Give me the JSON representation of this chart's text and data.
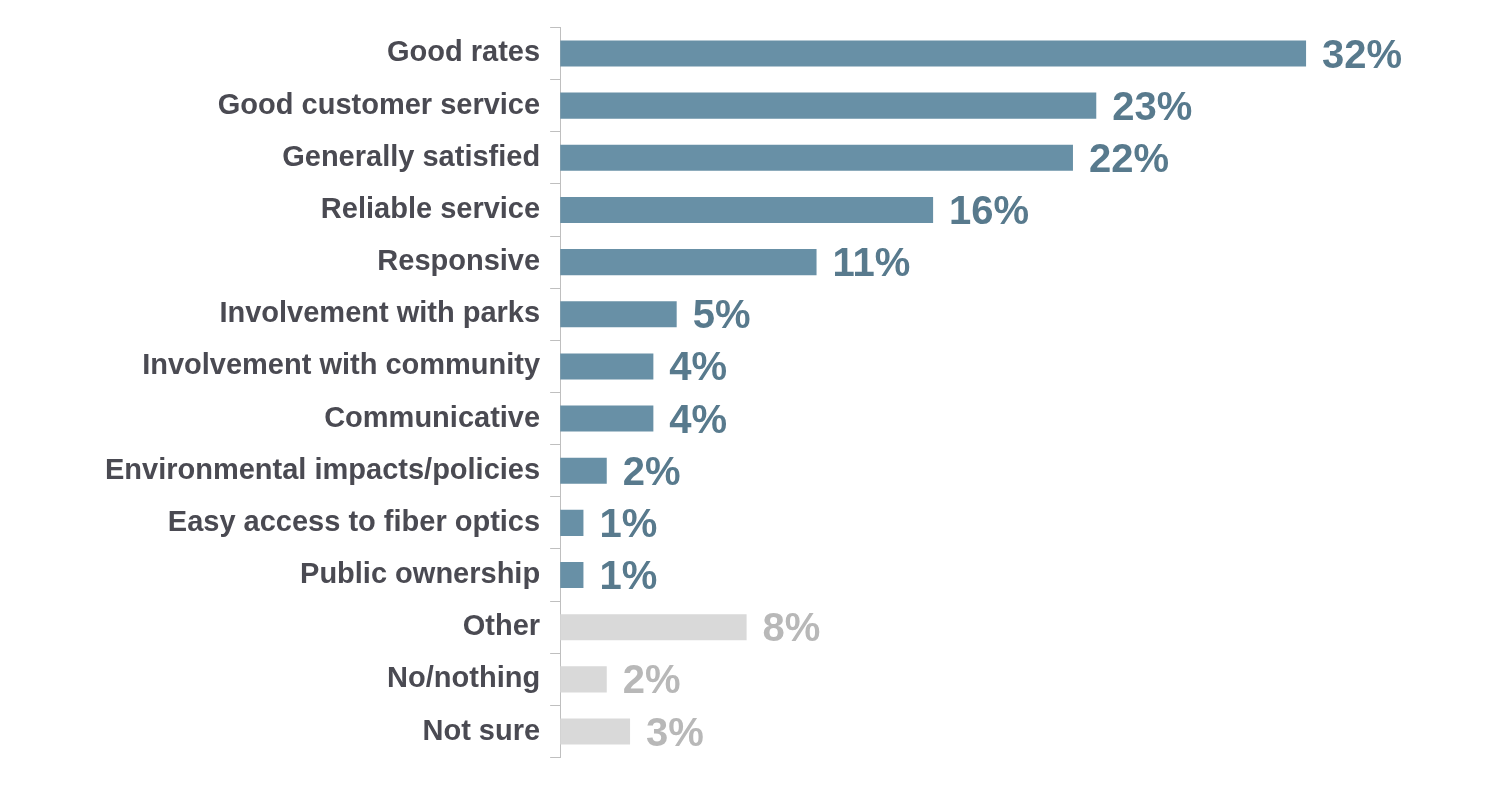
{
  "chart_data": {
    "type": "bar",
    "orientation": "horizontal",
    "legend": false,
    "categories": [
      "Good rates",
      "Good customer service",
      "Generally satisfied",
      "Reliable service",
      "Responsive",
      "Involvement with parks",
      "Involvement with community",
      "Communicative",
      "Environmental impacts/policies",
      "Easy access to fiber optics",
      "Public ownership",
      "Other",
      "No/nothing",
      "Not sure"
    ],
    "values": [
      32,
      23,
      22,
      16,
      11,
      5,
      4,
      4,
      2,
      1,
      1,
      8,
      2,
      3
    ],
    "value_labels": [
      "32%",
      "23%",
      "22%",
      "16%",
      "11%",
      "5%",
      "4%",
      "4%",
      "2%",
      "1%",
      "1%",
      "8%",
      "2%",
      "3%"
    ],
    "colors": [
      "#6890a6",
      "#6890a6",
      "#6890a6",
      "#6890a6",
      "#6890a6",
      "#6890a6",
      "#6890a6",
      "#6890a6",
      "#6890a6",
      "#6890a6",
      "#6890a6",
      "#d9d9d9",
      "#d9d9d9",
      "#d9d9d9"
    ]
  }
}
